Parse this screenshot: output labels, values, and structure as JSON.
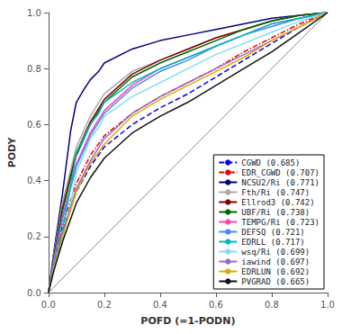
{
  "chart_data": {
    "type": "line",
    "xlabel": "POFD (=1-PODN)",
    "ylabel": "PODY",
    "xlim": [
      0.0,
      1.0
    ],
    "ylim": [
      0.0,
      1.0
    ],
    "xticks": [
      {
        "value": 0.0,
        "label": "0.0"
      },
      0.2,
      0.4,
      0.6,
      0.8,
      {
        "value": 1.0,
        "label": "1.0"
      }
    ],
    "yticks": [
      {
        "value": 0.0,
        "label": "0.0"
      },
      0.2,
      0.4,
      0.6,
      0.8,
      {
        "value": 1.0,
        "label": "1.0"
      }
    ],
    "grid": false,
    "legend": "lower right",
    "series": [
      {
        "color": "#666666",
        "line_style": "solid",
        "x": [
          0.0,
          1.0
        ],
        "values": [
          0.0,
          1.0
        ]
      },
      {
        "name": "CGWD (0.685)",
        "color": "#0000ee",
        "line_style": "dashed",
        "x": [
          0.0,
          0.02,
          0.05,
          0.1,
          0.15,
          0.2,
          0.3,
          0.4,
          0.5,
          0.6,
          0.7,
          0.8,
          0.9,
          1.0
        ],
        "values": [
          0.0,
          0.1,
          0.22,
          0.36,
          0.45,
          0.52,
          0.6,
          0.66,
          0.71,
          0.77,
          0.83,
          0.89,
          0.95,
          1.0
        ]
      },
      {
        "name": "EDR_CGWD (0.707)",
        "color": "#ee0000",
        "line_style": "dashdot",
        "x": [
          0.0,
          0.02,
          0.05,
          0.1,
          0.15,
          0.2,
          0.3,
          0.4,
          0.5,
          0.6,
          0.7,
          0.8,
          0.9,
          1.0
        ],
        "values": [
          0.0,
          0.11,
          0.24,
          0.39,
          0.49,
          0.56,
          0.64,
          0.7,
          0.75,
          0.8,
          0.86,
          0.91,
          0.96,
          1.0
        ]
      },
      {
        "name": "NCSU2/Ri (0.771)",
        "color": "#000080",
        "line_style": "solid",
        "x": [
          0.0,
          0.02,
          0.05,
          0.08,
          0.1,
          0.13,
          0.15,
          0.18,
          0.2,
          0.3,
          0.4,
          0.5,
          0.6,
          0.7,
          0.8,
          0.9,
          1.0
        ],
        "values": [
          0.0,
          0.15,
          0.35,
          0.58,
          0.68,
          0.73,
          0.76,
          0.79,
          0.82,
          0.87,
          0.9,
          0.92,
          0.94,
          0.96,
          0.98,
          0.99,
          1.0
        ]
      },
      {
        "name": "Fth/Ri (0.747)",
        "color": "#aaaaaa",
        "line_style": "solid",
        "x": [
          0.0,
          0.02,
          0.05,
          0.1,
          0.15,
          0.2,
          0.3,
          0.4,
          0.5,
          0.6,
          0.7,
          0.8,
          0.9,
          1.0
        ],
        "values": [
          0.0,
          0.14,
          0.32,
          0.52,
          0.63,
          0.71,
          0.79,
          0.83,
          0.87,
          0.91,
          0.94,
          0.97,
          0.99,
          1.0
        ]
      },
      {
        "name": "Ellrod3 (0.742)",
        "color": "#800000",
        "line_style": "solid",
        "x": [
          0.0,
          0.02,
          0.05,
          0.1,
          0.15,
          0.2,
          0.3,
          0.4,
          0.5,
          0.6,
          0.7,
          0.8,
          0.9,
          1.0
        ],
        "values": [
          0.0,
          0.13,
          0.3,
          0.5,
          0.61,
          0.69,
          0.78,
          0.83,
          0.87,
          0.91,
          0.94,
          0.97,
          0.99,
          1.0
        ]
      },
      {
        "name": "UBF/Ri (0.738)",
        "color": "#006600",
        "line_style": "solid",
        "x": [
          0.0,
          0.02,
          0.05,
          0.1,
          0.15,
          0.2,
          0.3,
          0.4,
          0.5,
          0.6,
          0.7,
          0.8,
          0.9,
          1.0
        ],
        "values": [
          0.0,
          0.13,
          0.29,
          0.49,
          0.6,
          0.68,
          0.77,
          0.82,
          0.86,
          0.9,
          0.94,
          0.97,
          0.99,
          1.0
        ]
      },
      {
        "name": "TEMPG/Ri (0.723)",
        "color": "#ff44aa",
        "line_style": "solid",
        "x": [
          0.0,
          0.02,
          0.05,
          0.1,
          0.15,
          0.2,
          0.3,
          0.4,
          0.5,
          0.6,
          0.7,
          0.8,
          0.9,
          1.0
        ],
        "values": [
          0.0,
          0.12,
          0.27,
          0.46,
          0.57,
          0.65,
          0.74,
          0.8,
          0.84,
          0.88,
          0.92,
          0.96,
          0.98,
          1.0
        ]
      },
      {
        "name": "DEFSQ (0.721)",
        "color": "#4488ff",
        "line_style": "solid",
        "x": [
          0.0,
          0.02,
          0.05,
          0.1,
          0.15,
          0.2,
          0.3,
          0.4,
          0.5,
          0.6,
          0.7,
          0.8,
          0.9,
          1.0
        ],
        "values": [
          0.0,
          0.11,
          0.26,
          0.45,
          0.56,
          0.64,
          0.73,
          0.79,
          0.83,
          0.88,
          0.92,
          0.95,
          0.98,
          1.0
        ]
      },
      {
        "name": "EDRLL (0.717)",
        "color": "#00bbbb",
        "line_style": "solid",
        "x": [
          0.0,
          0.02,
          0.05,
          0.08,
          0.1,
          0.13,
          0.15,
          0.18,
          0.2,
          0.3,
          0.4,
          0.5,
          0.6,
          0.7,
          0.8,
          0.9,
          1.0
        ],
        "values": [
          0.0,
          0.09,
          0.22,
          0.38,
          0.5,
          0.56,
          0.6,
          0.64,
          0.68,
          0.75,
          0.8,
          0.84,
          0.88,
          0.92,
          0.96,
          0.98,
          1.0
        ]
      },
      {
        "name": "wsq/Ri (0.699)",
        "color": "#88ddee",
        "line_style": "solid",
        "x": [
          0.0,
          0.02,
          0.05,
          0.08,
          0.1,
          0.13,
          0.15,
          0.18,
          0.2,
          0.3,
          0.4,
          0.5,
          0.6,
          0.7,
          0.8,
          0.9,
          1.0
        ],
        "values": [
          0.0,
          0.08,
          0.18,
          0.32,
          0.43,
          0.5,
          0.55,
          0.59,
          0.63,
          0.7,
          0.75,
          0.8,
          0.85,
          0.89,
          0.93,
          0.97,
          1.0
        ]
      },
      {
        "name": "iawind (0.697)",
        "color": "#9966cc",
        "line_style": "solid",
        "x": [
          0.0,
          0.02,
          0.05,
          0.1,
          0.15,
          0.2,
          0.3,
          0.4,
          0.5,
          0.6,
          0.7,
          0.8,
          0.9,
          1.0
        ],
        "values": [
          0.0,
          0.09,
          0.21,
          0.37,
          0.47,
          0.55,
          0.64,
          0.7,
          0.75,
          0.8,
          0.85,
          0.9,
          0.95,
          1.0
        ]
      },
      {
        "name": "EDRLUN (0.692)",
        "color": "#ddaa00",
        "line_style": "solid",
        "x": [
          0.0,
          0.02,
          0.05,
          0.1,
          0.15,
          0.2,
          0.3,
          0.4,
          0.5,
          0.6,
          0.7,
          0.8,
          0.9,
          1.0
        ],
        "values": [
          0.0,
          0.09,
          0.2,
          0.36,
          0.46,
          0.53,
          0.63,
          0.69,
          0.74,
          0.79,
          0.84,
          0.9,
          0.95,
          1.0
        ]
      },
      {
        "name": "PVGRAD (0.665)",
        "color": "#111111",
        "line_style": "solid",
        "x": [
          0.0,
          0.02,
          0.05,
          0.1,
          0.15,
          0.2,
          0.3,
          0.4,
          0.5,
          0.6,
          0.7,
          0.8,
          0.9,
          1.0
        ],
        "values": [
          0.0,
          0.08,
          0.18,
          0.32,
          0.41,
          0.48,
          0.57,
          0.63,
          0.68,
          0.74,
          0.8,
          0.86,
          0.93,
          1.0
        ]
      }
    ]
  }
}
